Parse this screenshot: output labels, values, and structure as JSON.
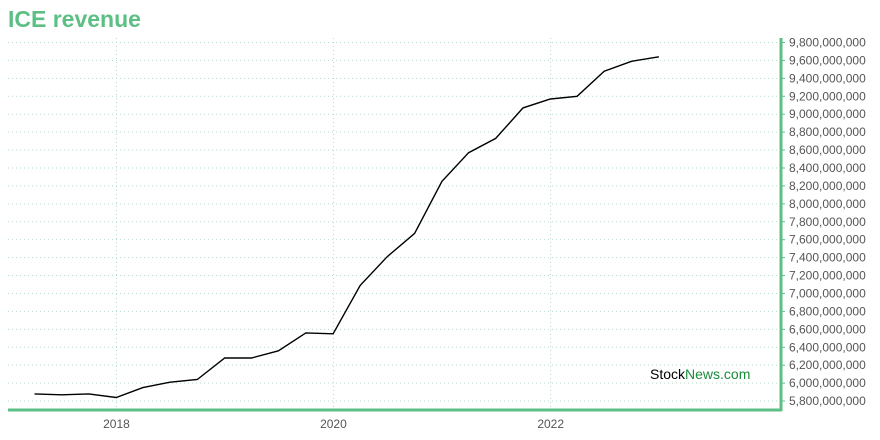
{
  "chart_data": {
    "type": "line",
    "title": "ICE revenue",
    "xlabel": "",
    "ylabel": "",
    "ylim": [
      5700000000,
      9850000000
    ],
    "y_ticks": [
      5800000000,
      6000000000,
      6200000000,
      6400000000,
      6600000000,
      6800000000,
      7000000000,
      7200000000,
      7400000000,
      7600000000,
      7800000000,
      8000000000,
      8200000000,
      8400000000,
      8600000000,
      8800000000,
      9000000000,
      9200000000,
      9400000000,
      9600000000,
      9800000000
    ],
    "y_tick_labels": [
      "5,800,000,000",
      "6,000,000,000",
      "6,200,000,000",
      "6,400,000,000",
      "6,600,000,000",
      "6,800,000,000",
      "7,000,000,000",
      "7,200,000,000",
      "7,400,000,000",
      "7,600,000,000",
      "7,800,000,000",
      "8,000,000,000",
      "8,200,000,000",
      "8,400,000,000",
      "8,600,000,000",
      "8,800,000,000",
      "9,000,000,000",
      "9,200,000,000",
      "9,400,000,000",
      "9,600,000,000",
      "9,800,000,000"
    ],
    "x_ticks": [
      "2018-01-01",
      "2020-01-01",
      "2022-01-01"
    ],
    "x_tick_labels": [
      "2018",
      "2020",
      "2022"
    ],
    "xlim": [
      "2017-01-01",
      "2024-02-15"
    ],
    "grid": true,
    "y_axis_position": "right",
    "series": [
      {
        "x": [
          "2017-03-31",
          "2017-06-30",
          "2017-09-30",
          "2017-12-31",
          "2018-03-31",
          "2018-06-30",
          "2018-09-30",
          "2018-12-31",
          "2019-03-31",
          "2019-06-30",
          "2019-09-30",
          "2019-12-31",
          "2020-03-31",
          "2020-06-30",
          "2020-09-30",
          "2020-12-31",
          "2021-03-31",
          "2021-06-30",
          "2021-09-30",
          "2021-12-31",
          "2022-03-31",
          "2022-06-30",
          "2022-09-30",
          "2022-12-31"
        ],
        "values": [
          5880000000,
          5870000000,
          5880000000,
          5840000000,
          5950000000,
          6010000000,
          6040000000,
          6280000000,
          6280000000,
          6360000000,
          6560000000,
          6550000000,
          7090000000,
          7410000000,
          7670000000,
          8250000000,
          8570000000,
          8730000000,
          9070000000,
          9170000000,
          9200000000,
          9480000000,
          9590000000,
          9640000000
        ]
      }
    ],
    "colors": {
      "title": "#5cbf84",
      "axis": "#5cbf84",
      "grid": "#b7dcc8",
      "line": "#000000",
      "watermark_stock": "#000000",
      "watermark_news": "#1a8a3c"
    },
    "watermark": {
      "part1": "Stock",
      "part2": "News",
      "part3": ".com"
    }
  }
}
